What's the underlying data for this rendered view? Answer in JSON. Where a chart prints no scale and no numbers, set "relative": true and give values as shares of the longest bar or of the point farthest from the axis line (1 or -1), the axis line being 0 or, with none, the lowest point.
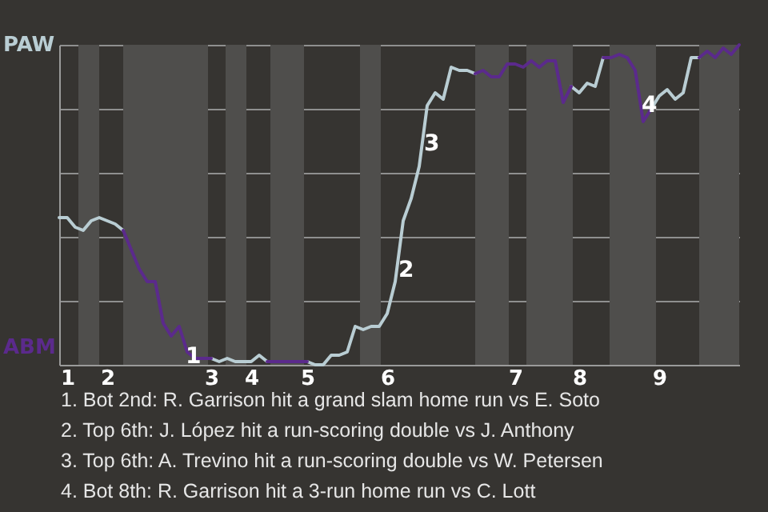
{
  "chart_data": {
    "type": "line",
    "relative": true,
    "grid": "y",
    "categories": [
      null,
      "1",
      null,
      null,
      null,
      null,
      "2",
      null,
      null,
      null,
      null,
      null,
      null,
      null,
      null,
      null,
      null,
      null,
      null,
      "3",
      null,
      null,
      null,
      null,
      "4",
      null,
      null,
      null,
      null,
      null,
      null,
      "5",
      null,
      null,
      null,
      null,
      null,
      null,
      null,
      null,
      null,
      "6",
      null,
      null,
      null,
      null,
      null,
      null,
      null,
      null,
      null,
      null,
      null,
      null,
      null,
      null,
      null,
      "7",
      null,
      null,
      null,
      null,
      null,
      null,
      null,
      "8",
      null,
      null,
      null,
      null,
      null,
      null,
      null,
      null,
      null,
      "9",
      null,
      null,
      null,
      null,
      null,
      null,
      null,
      null,
      null,
      null
    ],
    "series": [
      {
        "name": "PAW",
        "color": "#b9cdd3",
        "values": [
          0.46,
          0.46,
          0.43,
          0.42,
          0.45,
          0.46,
          0.45,
          0.44,
          0.42,
          null,
          null,
          null,
          null,
          null,
          null,
          null,
          null,
          null,
          null,
          0.02,
          0.01,
          0.02,
          0.01,
          0.01,
          0.01,
          0.03,
          0.01,
          null,
          null,
          null,
          null,
          0.01,
          0,
          0,
          0.03,
          0.03,
          0.04,
          0.12,
          0.11,
          0.12,
          0.12,
          0.16,
          0.26,
          0.45,
          0.52,
          0.62,
          0.81,
          0.85,
          0.83,
          0.93,
          0.92,
          0.92,
          0.91,
          null,
          null,
          null,
          null,
          null,
          null,
          null,
          null,
          null,
          null,
          null,
          0.87,
          0.85,
          0.88,
          0.87,
          0.96,
          null,
          null,
          null,
          null,
          null,
          0.8,
          0.84,
          0.86,
          0.83,
          0.85,
          0.96,
          0.96,
          null,
          null,
          null,
          null,
          null
        ]
      },
      {
        "name": "ABM",
        "color": "#5b2a8c",
        "values": [
          null,
          null,
          null,
          null,
          null,
          null,
          null,
          null,
          0.42,
          0.36,
          0.3,
          0.26,
          0.26,
          0.13,
          0.09,
          0.12,
          0.04,
          0.02,
          0.02,
          0.02,
          null,
          null,
          null,
          null,
          null,
          null,
          0.01,
          0.01,
          0.01,
          0.01,
          0.01,
          0.01,
          null,
          null,
          null,
          null,
          null,
          null,
          null,
          null,
          null,
          null,
          null,
          null,
          null,
          null,
          null,
          null,
          null,
          null,
          null,
          null,
          0.91,
          0.92,
          0.9,
          0.9,
          0.94,
          0.94,
          0.93,
          0.95,
          0.93,
          0.95,
          0.95,
          0.82,
          0.87,
          null,
          null,
          null,
          0.96,
          0.96,
          0.97,
          0.96,
          0.92,
          0.76,
          0.8,
          null,
          null,
          null,
          null,
          null,
          0.96,
          0.98,
          0.96,
          0.99,
          0.97,
          1
        ]
      }
    ],
    "annotations": [
      "1",
      "2",
      "3",
      "4",
      "1. Bot 2nd: R. Garrison hit a grand slam home run vs E. Soto",
      "2. Top 6th: J. López hit a run-scoring double vs J. Anthony",
      "3. Top 6th: A. Trevino hit a run-scoring double vs W. Petersen",
      "4. Bot 8th: R. Garrison hit a 3-run home run vs C. Lott"
    ]
  }
}
